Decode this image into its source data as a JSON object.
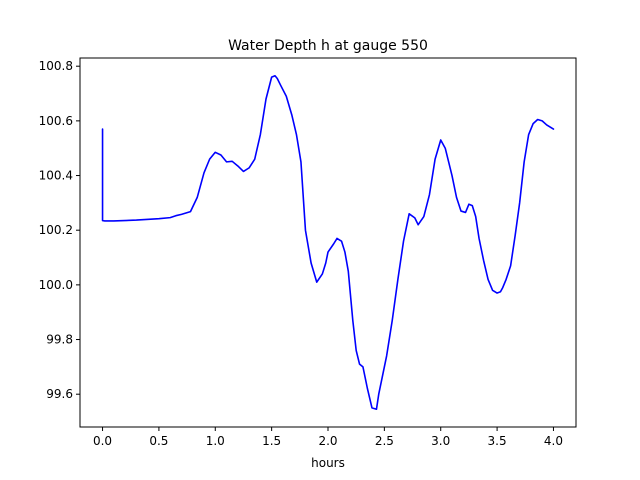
{
  "chart_data": {
    "type": "line",
    "title": "Water Depth h at gauge 550",
    "xlabel": "hours",
    "ylabel": "",
    "xlim": [
      -0.2,
      4.2
    ],
    "ylim": [
      99.48,
      100.83
    ],
    "x_ticks": [
      0.0,
      0.5,
      1.0,
      1.5,
      2.0,
      2.5,
      3.0,
      3.5,
      4.0
    ],
    "x_tick_labels": [
      "0.0",
      "0.5",
      "1.0",
      "1.5",
      "2.0",
      "2.5",
      "3.0",
      "3.5",
      "4.0"
    ],
    "y_ticks": [
      99.6,
      99.8,
      100.0,
      100.2,
      100.4,
      100.6,
      100.8
    ],
    "y_tick_labels": [
      "99.6",
      "99.8",
      "100.0",
      "100.2",
      "100.4",
      "100.6",
      "100.8"
    ],
    "grid": false,
    "series": [
      {
        "color": "#0000ff",
        "x": [
          0.0,
          0.0,
          0.02,
          0.1,
          0.3,
          0.5,
          0.6,
          0.65,
          0.7,
          0.78,
          0.84,
          0.9,
          0.95,
          1.0,
          1.05,
          1.1,
          1.15,
          1.2,
          1.25,
          1.3,
          1.35,
          1.4,
          1.45,
          1.5,
          1.53,
          1.55,
          1.58,
          1.63,
          1.68,
          1.72,
          1.76,
          1.8,
          1.85,
          1.9,
          1.95,
          1.98,
          2.0,
          2.05,
          2.08,
          2.12,
          2.15,
          2.18,
          2.22,
          2.25,
          2.28,
          2.31,
          2.35,
          2.39,
          2.43,
          2.45,
          2.48,
          2.52,
          2.57,
          2.62,
          2.67,
          2.72,
          2.77,
          2.8,
          2.85,
          2.9,
          2.95,
          3.0,
          3.04,
          3.07,
          3.1,
          3.14,
          3.18,
          3.22,
          3.25,
          3.28,
          3.31,
          3.34,
          3.38,
          3.42,
          3.46,
          3.5,
          3.53,
          3.55,
          3.58,
          3.62,
          3.66,
          3.7,
          3.74,
          3.78,
          3.82,
          3.86,
          3.9,
          3.94,
          3.96,
          3.98,
          4.0
        ],
        "y": [
          100.57,
          100.235,
          100.234,
          100.234,
          100.237,
          100.242,
          100.246,
          100.253,
          100.258,
          100.268,
          100.32,
          100.41,
          100.46,
          100.485,
          100.475,
          100.45,
          100.452,
          100.435,
          100.415,
          100.428,
          100.46,
          100.55,
          100.68,
          100.76,
          100.765,
          100.755,
          100.73,
          100.69,
          100.62,
          100.55,
          100.45,
          100.2,
          100.08,
          100.01,
          100.04,
          100.08,
          100.12,
          100.15,
          100.17,
          100.16,
          100.12,
          100.05,
          99.87,
          99.76,
          99.71,
          99.7,
          99.62,
          99.55,
          99.545,
          99.6,
          99.66,
          99.74,
          99.87,
          100.02,
          100.16,
          100.26,
          100.245,
          100.22,
          100.25,
          100.33,
          100.46,
          100.53,
          100.5,
          100.45,
          100.4,
          100.32,
          100.27,
          100.265,
          100.295,
          100.29,
          100.25,
          100.17,
          100.09,
          100.02,
          99.98,
          99.97,
          99.975,
          99.99,
          100.02,
          100.07,
          100.18,
          100.3,
          100.45,
          100.55,
          100.59,
          100.605,
          100.6,
          100.585,
          100.58,
          100.575,
          100.57
        ]
      }
    ]
  }
}
